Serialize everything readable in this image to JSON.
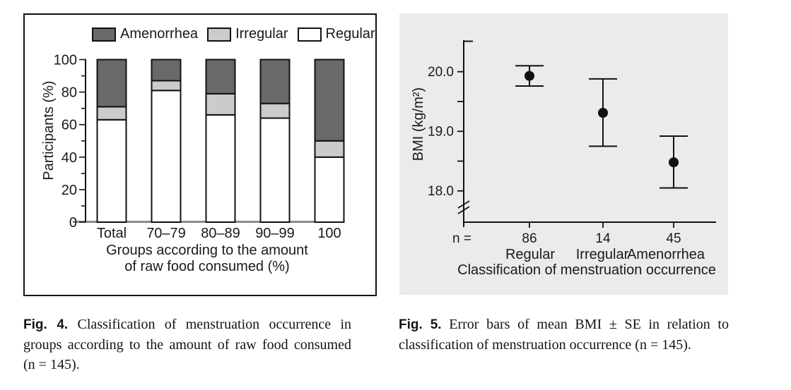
{
  "page": {
    "background": "#ffffff"
  },
  "fig4": {
    "label": "Fig. 4.",
    "caption_lines": [
      "Classification of menstruation occurrence in",
      "groups according to the amount of raw food consumed",
      "(n = 145)."
    ]
  },
  "fig5": {
    "label": "Fig. 5.",
    "caption_lines": [
      "Error bars of mean BMI ± SE in relation to",
      "classification of menstruation occurrence (n = 145)."
    ]
  },
  "chart_data": [
    {
      "type": "bar",
      "stacked": true,
      "title": "",
      "categories": [
        "Total",
        "70–79",
        "80–89",
        "90–99",
        "100"
      ],
      "series": [
        {
          "name": "Regular",
          "color": "#ffffff",
          "values": [
            63,
            81,
            66,
            64,
            40
          ]
        },
        {
          "name": "Irregular",
          "color": "#cbcbcb",
          "values": [
            8,
            6,
            13,
            9,
            10
          ]
        },
        {
          "name": "Amenorrhea",
          "color": "#696969",
          "values": [
            29,
            13,
            21,
            27,
            50
          ]
        }
      ],
      "legend": [
        "Amenorrhea",
        "Irregular",
        "Regular"
      ],
      "legend_position": "top",
      "xlabel_lines": [
        "Groups according to the amount",
        "of raw food consumed (%)"
      ],
      "ylabel": "Participants (%)",
      "ylim": [
        0,
        100
      ],
      "yticks": [
        0,
        20,
        40,
        60,
        80,
        100
      ],
      "minor_tick_step": 10,
      "grid": false,
      "axis_color": "#111111",
      "baseline_color": "#8c8c8c",
      "bar_outline": "#111111"
    },
    {
      "type": "errorbar",
      "title": "",
      "categories": [
        "Regular",
        "Irregular",
        "Amenorrhea"
      ],
      "n_label": "n =",
      "n_values": [
        "86",
        "14",
        "45"
      ],
      "means": [
        19.93,
        19.31,
        18.48
      ],
      "upper": [
        20.1,
        19.88,
        18.92
      ],
      "lower": [
        19.76,
        18.75,
        18.05
      ],
      "xlabel": "Classification of menstruation occurrence",
      "ylabel": "BMI (kg/m²)",
      "yticks": [
        "18.0",
        "19.0",
        "20.0"
      ],
      "ytick_values": [
        18.0,
        19.0,
        20.0
      ],
      "minor_yticks": [
        18.5,
        19.5
      ],
      "axis_break": true,
      "ylim": [
        17.7,
        20.5
      ],
      "grid": false,
      "background": "#ebebeb",
      "marker_color": "#111111",
      "axis_color": "#111111"
    }
  ]
}
